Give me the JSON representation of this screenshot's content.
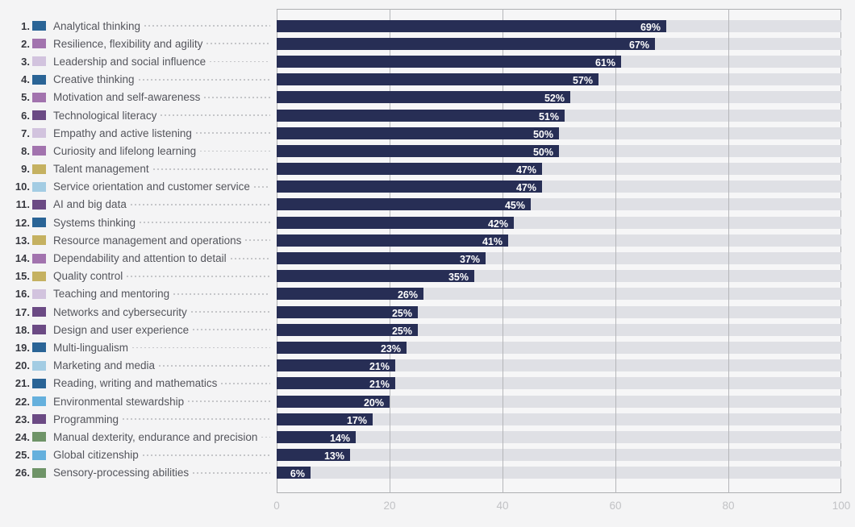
{
  "chart_data": {
    "type": "bar",
    "orientation": "horizontal",
    "xlim": [
      0,
      100
    ],
    "x_ticks": [
      0,
      20,
      40,
      60,
      80,
      100
    ],
    "grid": "vertical",
    "bar_color": "#272e55",
    "track_color": "#dfe0e5",
    "value_suffix": "%",
    "category_colors": {
      "cognitive": "#2a6496",
      "self_efficacy": "#a273ae",
      "working_with_others": "#d2c3de",
      "technology": "#6b4a84",
      "management": "#c5b161",
      "engagement": "#a3cce3",
      "ethics": "#65b0dd",
      "physical": "#6f9468"
    },
    "items": [
      {
        "rank_label": "1.",
        "label": "Analytical thinking",
        "value": 69,
        "value_label": "69%",
        "category": "cognitive"
      },
      {
        "rank_label": "2.",
        "label": "Resilience, flexibility and agility",
        "value": 67,
        "value_label": "67%",
        "category": "self_efficacy"
      },
      {
        "rank_label": "3.",
        "label": "Leadership and social influence",
        "value": 61,
        "value_label": "61%",
        "category": "working_with_others"
      },
      {
        "rank_label": "4.",
        "label": "Creative thinking",
        "value": 57,
        "value_label": "57%",
        "category": "cognitive"
      },
      {
        "rank_label": "5.",
        "label": "Motivation and self-awareness",
        "value": 52,
        "value_label": "52%",
        "category": "self_efficacy"
      },
      {
        "rank_label": "6.",
        "label": "Technological literacy",
        "value": 51,
        "value_label": "51%",
        "category": "technology"
      },
      {
        "rank_label": "7.",
        "label": "Empathy and active listening",
        "value": 50,
        "value_label": "50%",
        "category": "working_with_others"
      },
      {
        "rank_label": "8.",
        "label": "Curiosity and lifelong learning",
        "value": 50,
        "value_label": "50%",
        "category": "self_efficacy"
      },
      {
        "rank_label": "9.",
        "label": "Talent management",
        "value": 47,
        "value_label": "47%",
        "category": "management"
      },
      {
        "rank_label": "10.",
        "label": "Service orientation and customer service",
        "value": 47,
        "value_label": "47%",
        "category": "engagement"
      },
      {
        "rank_label": "11.",
        "label": "AI and big data",
        "value": 45,
        "value_label": "45%",
        "category": "technology"
      },
      {
        "rank_label": "12.",
        "label": "Systems thinking",
        "value": 42,
        "value_label": "42%",
        "category": "cognitive"
      },
      {
        "rank_label": "13.",
        "label": "Resource management and operations",
        "value": 41,
        "value_label": "41%",
        "category": "management"
      },
      {
        "rank_label": "14.",
        "label": "Dependability and attention to detail",
        "value": 37,
        "value_label": "37%",
        "category": "self_efficacy"
      },
      {
        "rank_label": "15.",
        "label": "Quality control",
        "value": 35,
        "value_label": "35%",
        "category": "management"
      },
      {
        "rank_label": "16.",
        "label": "Teaching and mentoring",
        "value": 26,
        "value_label": "26%",
        "category": "working_with_others"
      },
      {
        "rank_label": "17.",
        "label": "Networks and cybersecurity",
        "value": 25,
        "value_label": "25%",
        "category": "technology"
      },
      {
        "rank_label": "18.",
        "label": "Design and user experience",
        "value": 25,
        "value_label": "25%",
        "category": "technology"
      },
      {
        "rank_label": "19.",
        "label": "Multi-lingualism",
        "value": 23,
        "value_label": "23%",
        "category": "cognitive"
      },
      {
        "rank_label": "20.",
        "label": "Marketing and media",
        "value": 21,
        "value_label": "21%",
        "category": "engagement"
      },
      {
        "rank_label": "21.",
        "label": "Reading, writing and mathematics",
        "value": 21,
        "value_label": "21%",
        "category": "cognitive"
      },
      {
        "rank_label": "22.",
        "label": "Environmental stewardship",
        "value": 20,
        "value_label": "20%",
        "category": "ethics"
      },
      {
        "rank_label": "23.",
        "label": "Programming",
        "value": 17,
        "value_label": "17%",
        "category": "technology"
      },
      {
        "rank_label": "24.",
        "label": "Manual dexterity, endurance and precision",
        "value": 14,
        "value_label": "14%",
        "category": "physical"
      },
      {
        "rank_label": "25.",
        "label": "Global citizenship",
        "value": 13,
        "value_label": "13%",
        "category": "ethics"
      },
      {
        "rank_label": "26.",
        "label": "Sensory-processing abilities",
        "value": 6,
        "value_label": "6%",
        "category": "physical"
      }
    ]
  }
}
